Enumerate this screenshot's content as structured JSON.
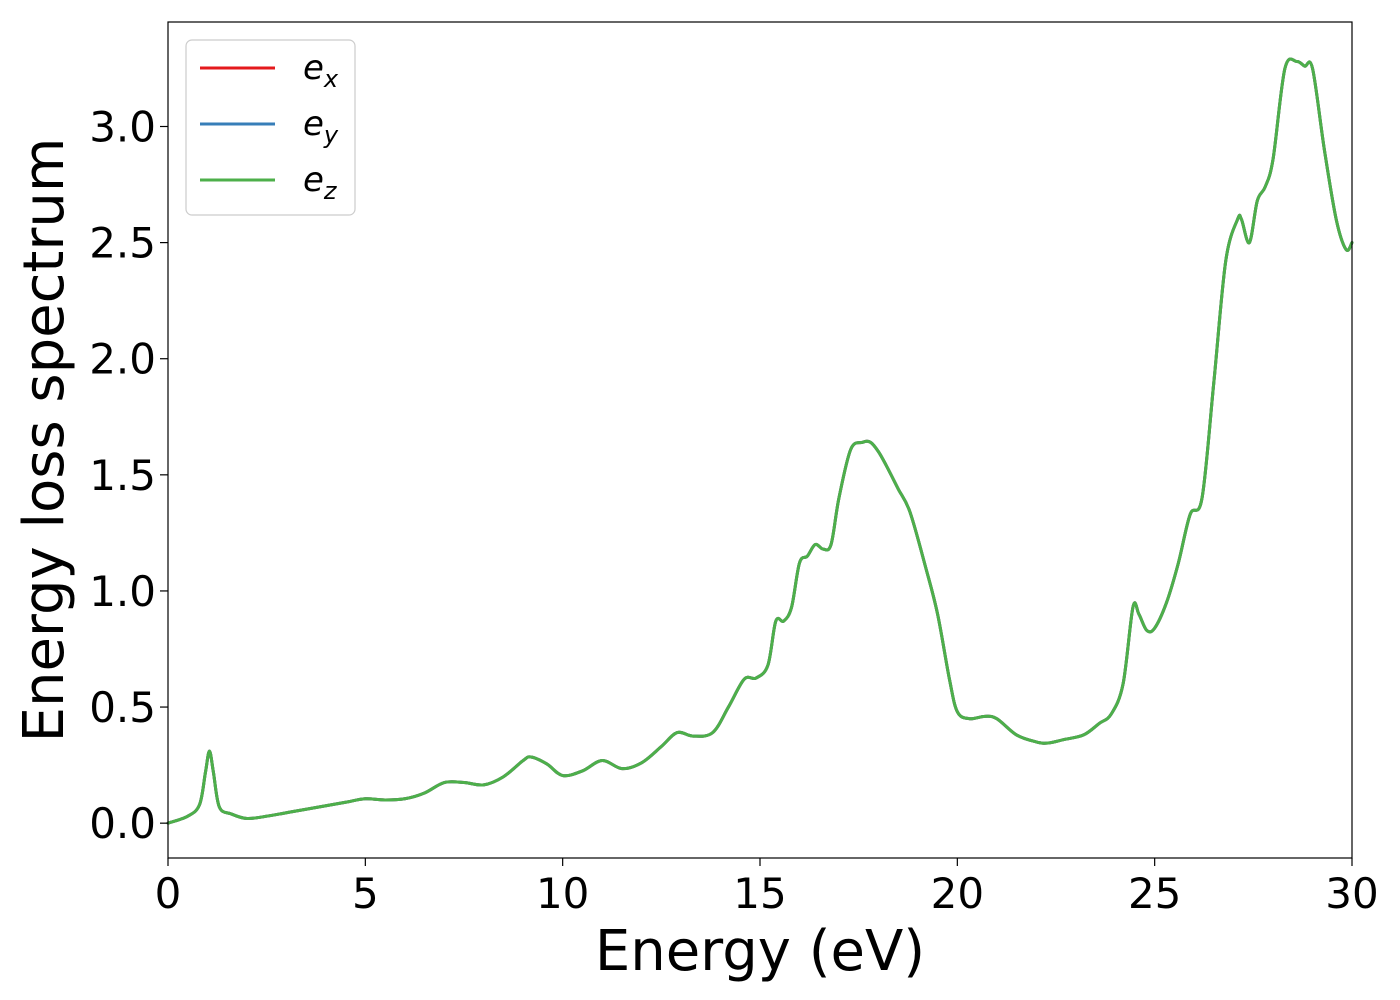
{
  "chart_data": {
    "type": "line",
    "xlabel": "Energy (eV)",
    "ylabel": "Energy loss spectrum",
    "xlim": [
      0,
      30
    ],
    "ylim": [
      -0.15,
      3.45
    ],
    "xticks": [
      0,
      5,
      10,
      15,
      20,
      25,
      30
    ],
    "xtick_labels": [
      "0",
      "5",
      "10",
      "15",
      "20",
      "25",
      "30"
    ],
    "yticks": [
      0.0,
      0.5,
      1.0,
      1.5,
      2.0,
      2.5,
      3.0
    ],
    "ytick_labels": [
      "0.0",
      "0.5",
      "1.0",
      "1.5",
      "2.0",
      "2.5",
      "3.0"
    ],
    "grid": false,
    "legend_position": "top-left",
    "x": [
      0,
      0.5,
      0.8,
      0.95,
      1.05,
      1.15,
      1.3,
      1.6,
      2.0,
      2.5,
      3.0,
      3.5,
      4.0,
      4.5,
      5.0,
      5.5,
      6.0,
      6.5,
      7.0,
      7.5,
      8.0,
      8.5,
      9.0,
      9.2,
      9.6,
      10.0,
      10.5,
      11.0,
      11.5,
      12.0,
      12.5,
      12.9,
      13.3,
      13.8,
      14.2,
      14.6,
      14.9,
      15.2,
      15.4,
      15.6,
      15.8,
      16.0,
      16.2,
      16.4,
      16.6,
      16.8,
      17.0,
      17.3,
      17.6,
      17.8,
      18.0,
      18.2,
      18.5,
      18.8,
      19.2,
      19.5,
      19.8,
      20.0,
      20.3,
      20.7,
      21.0,
      21.5,
      22.0,
      22.3,
      22.7,
      23.2,
      23.6,
      23.9,
      24.2,
      24.45,
      24.6,
      24.8,
      25.0,
      25.3,
      25.6,
      25.9,
      26.2,
      26.5,
      26.8,
      27.1,
      27.2,
      27.4,
      27.6,
      27.8,
      28.0,
      28.3,
      28.6,
      28.8,
      29.0,
      29.3,
      29.6,
      29.85,
      30.0
    ],
    "series": [
      {
        "name": "e_x",
        "color": "#e41a1c",
        "values": [
          0.0,
          0.03,
          0.08,
          0.22,
          0.31,
          0.22,
          0.07,
          0.04,
          0.02,
          0.03,
          0.045,
          0.06,
          0.075,
          0.09,
          0.105,
          0.1,
          0.105,
          0.13,
          0.175,
          0.175,
          0.165,
          0.2,
          0.27,
          0.285,
          0.255,
          0.205,
          0.225,
          0.27,
          0.235,
          0.26,
          0.33,
          0.39,
          0.375,
          0.39,
          0.5,
          0.62,
          0.625,
          0.68,
          0.87,
          0.87,
          0.93,
          1.12,
          1.15,
          1.2,
          1.18,
          1.2,
          1.4,
          1.61,
          1.64,
          1.64,
          1.6,
          1.54,
          1.44,
          1.34,
          1.1,
          0.9,
          0.62,
          0.48,
          0.45,
          0.46,
          0.45,
          0.38,
          0.35,
          0.345,
          0.36,
          0.38,
          0.43,
          0.47,
          0.6,
          0.93,
          0.9,
          0.83,
          0.84,
          0.95,
          1.12,
          1.33,
          1.4,
          1.9,
          2.42,
          2.6,
          2.6,
          2.5,
          2.68,
          2.74,
          2.86,
          3.25,
          3.28,
          3.26,
          3.25,
          2.9,
          2.6,
          2.47,
          2.5
        ]
      },
      {
        "name": "e_y",
        "color": "#377eb8",
        "values": [
          0.0,
          0.03,
          0.08,
          0.22,
          0.31,
          0.22,
          0.07,
          0.04,
          0.02,
          0.03,
          0.045,
          0.06,
          0.075,
          0.09,
          0.105,
          0.1,
          0.105,
          0.13,
          0.175,
          0.175,
          0.165,
          0.2,
          0.27,
          0.285,
          0.255,
          0.205,
          0.225,
          0.27,
          0.235,
          0.26,
          0.33,
          0.39,
          0.375,
          0.39,
          0.5,
          0.62,
          0.625,
          0.68,
          0.87,
          0.87,
          0.93,
          1.12,
          1.15,
          1.2,
          1.18,
          1.2,
          1.4,
          1.61,
          1.64,
          1.64,
          1.6,
          1.54,
          1.44,
          1.34,
          1.1,
          0.9,
          0.62,
          0.48,
          0.45,
          0.46,
          0.45,
          0.38,
          0.35,
          0.345,
          0.36,
          0.38,
          0.43,
          0.47,
          0.6,
          0.93,
          0.9,
          0.83,
          0.84,
          0.95,
          1.12,
          1.33,
          1.4,
          1.9,
          2.42,
          2.6,
          2.6,
          2.5,
          2.68,
          2.74,
          2.86,
          3.25,
          3.28,
          3.26,
          3.25,
          2.9,
          2.6,
          2.47,
          2.5
        ]
      },
      {
        "name": "e_z",
        "color": "#4daf4a",
        "values": [
          0.0,
          0.03,
          0.08,
          0.22,
          0.31,
          0.22,
          0.07,
          0.04,
          0.02,
          0.03,
          0.045,
          0.06,
          0.075,
          0.09,
          0.105,
          0.1,
          0.105,
          0.13,
          0.175,
          0.175,
          0.165,
          0.2,
          0.27,
          0.285,
          0.255,
          0.205,
          0.225,
          0.27,
          0.235,
          0.26,
          0.33,
          0.39,
          0.375,
          0.39,
          0.5,
          0.62,
          0.625,
          0.68,
          0.87,
          0.87,
          0.93,
          1.12,
          1.15,
          1.2,
          1.18,
          1.2,
          1.4,
          1.61,
          1.64,
          1.64,
          1.6,
          1.54,
          1.44,
          1.34,
          1.1,
          0.9,
          0.62,
          0.48,
          0.45,
          0.46,
          0.45,
          0.38,
          0.35,
          0.345,
          0.36,
          0.38,
          0.43,
          0.47,
          0.6,
          0.93,
          0.9,
          0.83,
          0.84,
          0.95,
          1.12,
          1.33,
          1.4,
          1.9,
          2.42,
          2.6,
          2.6,
          2.5,
          2.68,
          2.74,
          2.86,
          3.25,
          3.28,
          3.26,
          3.25,
          2.9,
          2.6,
          2.47,
          2.5
        ]
      }
    ],
    "legend": [
      {
        "base": "e",
        "sub": "x",
        "color": "#e41a1c"
      },
      {
        "base": "e",
        "sub": "y",
        "color": "#377eb8"
      },
      {
        "base": "e",
        "sub": "z",
        "color": "#4daf4a"
      }
    ]
  }
}
